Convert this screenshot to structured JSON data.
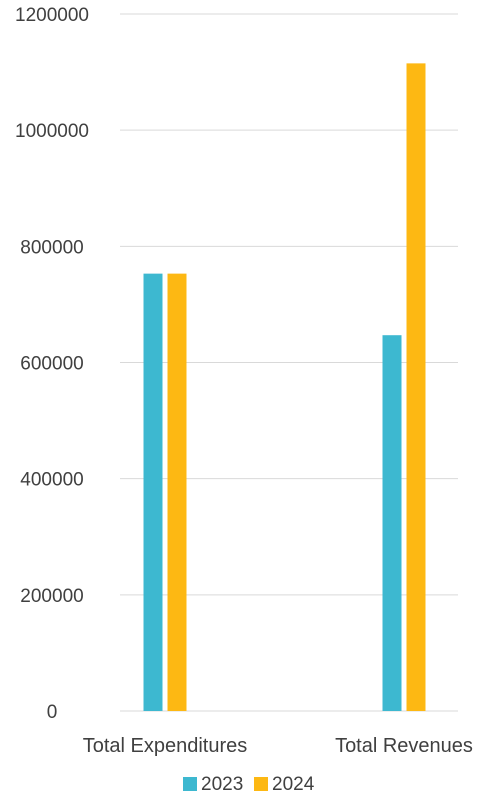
{
  "chart_data": {
    "type": "bar",
    "title": "",
    "xlabel": "",
    "ylabel": "",
    "categories": [
      "Total Expenditures",
      "Total Revenues"
    ],
    "series": [
      {
        "name": "2023",
        "values": [
          753000,
          647000
        ]
      },
      {
        "name": "2024",
        "values": [
          753000,
          1115000
        ]
      }
    ],
    "ylim": [
      0,
      1200000
    ],
    "yticks": [
      0,
      200000,
      400000,
      600000,
      800000,
      1000000,
      1200000
    ],
    "ytick_labels": [
      "0",
      "200000",
      "400000",
      "600000",
      "800000",
      "1000000",
      "1200000"
    ],
    "grid": true,
    "legend": "bottom",
    "colors": {
      "2023": "#3DB8D0",
      "2024": "#FDB813",
      "grid": "#D9D9D9",
      "text": "#404040"
    }
  }
}
